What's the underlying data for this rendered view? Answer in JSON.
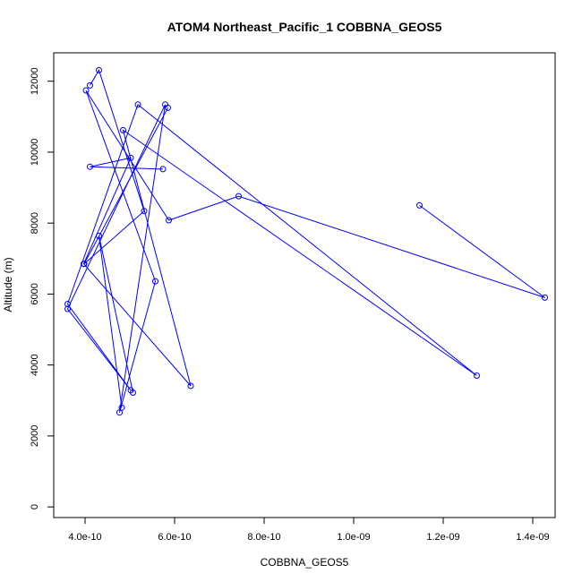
{
  "chart_data": {
    "type": "line",
    "title": "ATOM4 Northeast_Pacific_1 COBBNA_GEOS5",
    "xlabel": "COBBNA_GEOS5",
    "ylabel": "Altitude (m)",
    "xlim": [
      3.3e-10,
      1.45e-09
    ],
    "ylim": [
      -300,
      12800
    ],
    "xticks": [
      {
        "value": 4e-10,
        "label": "4.0e-10"
      },
      {
        "value": 6e-10,
        "label": "6.0e-10"
      },
      {
        "value": 8e-10,
        "label": "8.0e-10"
      },
      {
        "value": 1e-09,
        "label": "1.0e-09"
      },
      {
        "value": 1.2e-09,
        "label": "1.2e-09"
      },
      {
        "value": 1.4e-09,
        "label": "1.4e-09"
      }
    ],
    "yticks": [
      {
        "value": 0,
        "label": "0"
      },
      {
        "value": 2000,
        "label": "2000"
      },
      {
        "value": 4000,
        "label": "4000"
      },
      {
        "value": 6000,
        "label": "6000"
      },
      {
        "value": 8000,
        "label": "8000"
      },
      {
        "value": 10000,
        "label": "10000"
      },
      {
        "value": 12000,
        "label": "12000"
      }
    ],
    "grid": false,
    "color": "#0000ff",
    "series": [
      {
        "points": [
          {
            "x": 1.147e-09,
            "y": 8500
          },
          {
            "x": 1.427e-09,
            "y": 5900
          },
          {
            "x": 7.43e-10,
            "y": 8760
          },
          {
            "x": 5.87e-10,
            "y": 8080
          },
          {
            "x": 4.02e-10,
            "y": 11740
          },
          {
            "x": 5.57e-10,
            "y": 6360
          },
          {
            "x": 4.77e-10,
            "y": 2660
          },
          {
            "x": 5.79e-10,
            "y": 11340
          },
          {
            "x": 3.61e-10,
            "y": 5580
          },
          {
            "x": 5.02e-10,
            "y": 3290
          },
          {
            "x": 3.61e-10,
            "y": 5720
          },
          {
            "x": 5.18e-10,
            "y": 11340
          },
          {
            "x": 1.275e-09,
            "y": 3700
          },
          {
            "x": 4.85e-10,
            "y": 10620
          },
          {
            "x": 6.36e-10,
            "y": 3410
          },
          {
            "x": 3.97e-10,
            "y": 6850
          },
          {
            "x": 5.02e-10,
            "y": 9840
          },
          {
            "x": 4.11e-10,
            "y": 9590
          },
          {
            "x": 5.74e-10,
            "y": 9520
          }
        ]
      },
      {
        "points": [
          {
            "x": 5.85e-10,
            "y": 11250
          },
          {
            "x": 3.98e-10,
            "y": 6850
          },
          {
            "x": 5.32e-10,
            "y": 8340
          },
          {
            "x": 4.31e-10,
            "y": 12310
          },
          {
            "x": 4.11e-10,
            "y": 11880
          }
        ]
      },
      {
        "points": [
          {
            "x": 5.07e-10,
            "y": 3220
          },
          {
            "x": 4.31e-10,
            "y": 7640
          },
          {
            "x": 4.82e-10,
            "y": 2800
          }
        ]
      }
    ]
  }
}
